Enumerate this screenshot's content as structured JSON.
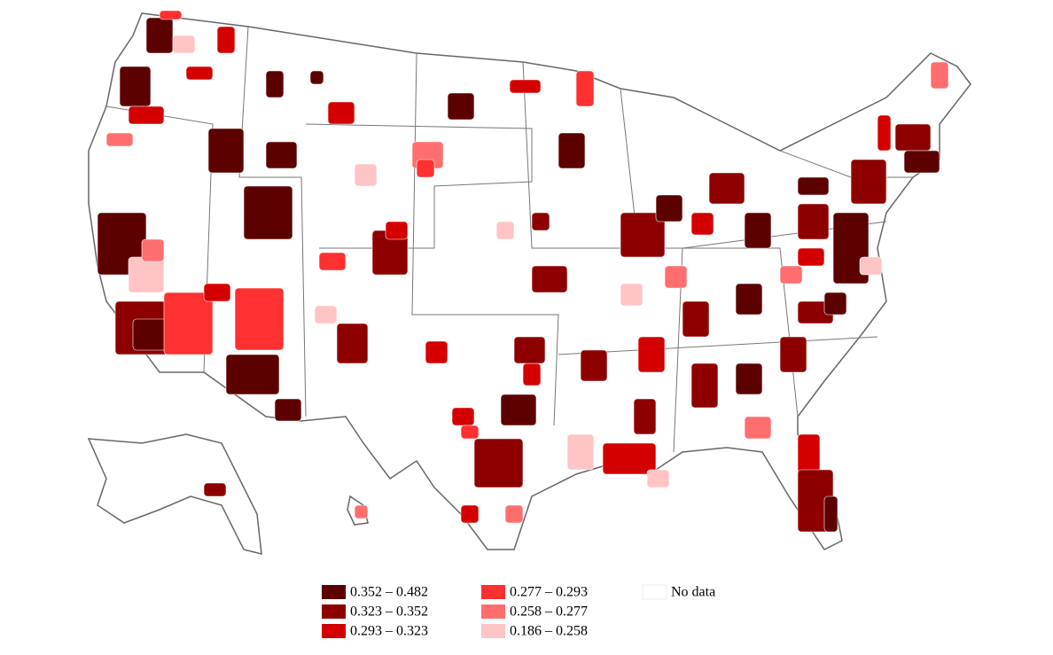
{
  "legend": {
    "items": [
      {
        "label": "0.352 – 0.482",
        "color": "#5c0000"
      },
      {
        "label": "0.323 – 0.352",
        "color": "#8e0000"
      },
      {
        "label": "0.293 – 0.323",
        "color": "#d40000"
      },
      {
        "label": "0.277 – 0.293",
        "color": "#ff3030"
      },
      {
        "label": "0.258 – 0.277",
        "color": "#ff6e6e"
      },
      {
        "label": "0.186 – 0.258",
        "color": "#ffc4c4"
      }
    ],
    "no_data": {
      "label": "No data",
      "color": "#ffffff"
    }
  }
}
